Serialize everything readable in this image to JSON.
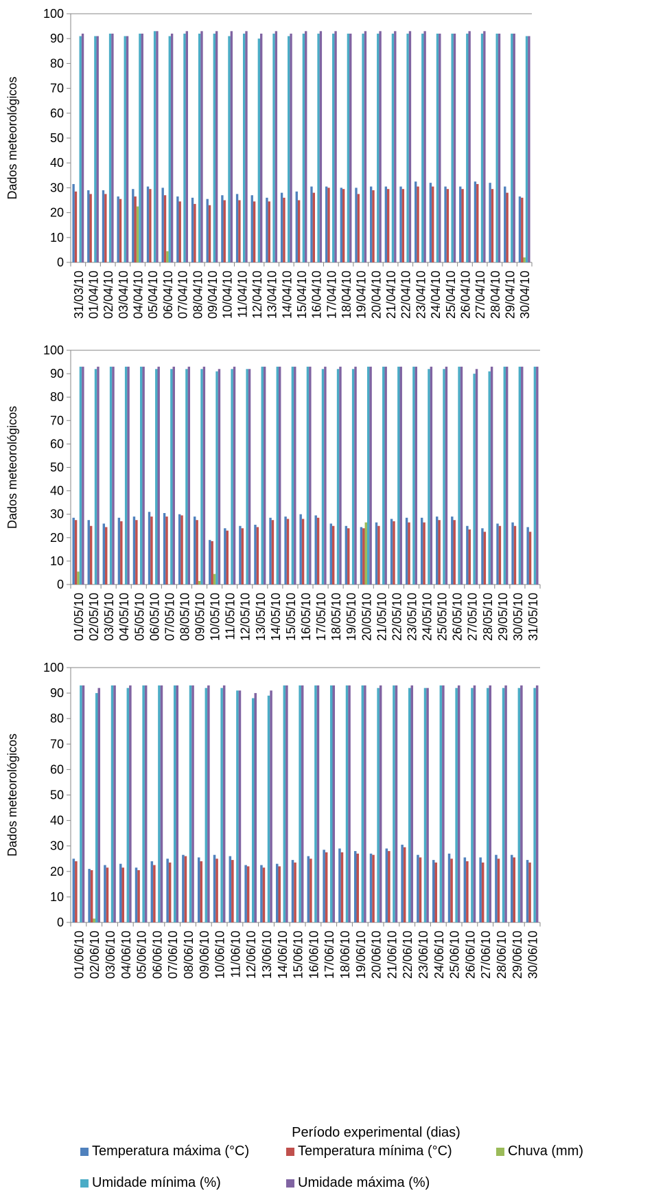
{
  "figure": {
    "xlabel": "Período experimental (dias)",
    "legend": [
      {
        "name": "Temperatura máxima (°C)",
        "color": "#4f81bd"
      },
      {
        "name": "Temperatura mínima (°C)",
        "color": "#c0504d"
      },
      {
        "name": "Chuva (mm)",
        "color": "#9bbb59"
      },
      {
        "name": "Umidade mínima (%)",
        "color": "#4bacc6"
      },
      {
        "name": "Umidade máxima (%)",
        "color": "#8064a2"
      }
    ]
  },
  "chart_data": [
    {
      "type": "bar",
      "title": "",
      "xlabel": "",
      "ylabel": "Dados meteorológicos",
      "ylim": [
        0,
        100
      ],
      "yticks": [
        0,
        10,
        20,
        30,
        40,
        50,
        60,
        70,
        80,
        90,
        100
      ],
      "grid": false,
      "legend_position": "bottom",
      "categories": [
        "31/03/10",
        "01/04/10",
        "02/04/10",
        "03/04/10",
        "04/04/10",
        "05/04/10",
        "06/04/10",
        "07/04/10",
        "08/04/10",
        "09/04/10",
        "10/04/10",
        "11/04/10",
        "12/04/10",
        "13/04/10",
        "14/04/10",
        "15/04/10",
        "16/04/10",
        "17/04/10",
        "18/04/10",
        "19/04/10",
        "20/04/10",
        "21/04/10",
        "22/04/10",
        "23/04/10",
        "24/04/10",
        "25/04/10",
        "26/04/10",
        "27/04/10",
        "28/04/10",
        "29/04/10",
        "30/04/10"
      ],
      "series": [
        {
          "name": "Temperatura máxima (°C)",
          "color": "#4f81bd",
          "values": [
            31.5,
            29,
            29,
            26.5,
            29.5,
            30.5,
            30,
            26.5,
            26,
            25.5,
            27,
            27.5,
            27,
            26,
            28,
            28.5,
            30.5,
            30.5,
            30,
            30,
            30.5,
            30.5,
            30.5,
            32.5,
            32,
            30.5,
            30.5,
            32.5,
            32,
            30.5,
            26.5
          ]
        },
        {
          "name": "Temperatura mínima (°C)",
          "color": "#c0504d",
          "values": [
            28.5,
            27.5,
            27.5,
            25.5,
            26.5,
            29.5,
            27,
            24.5,
            23.5,
            23,
            25,
            25,
            24.5,
            24.5,
            26,
            25,
            28,
            30,
            29.5,
            27.5,
            29,
            29.5,
            29.5,
            30.5,
            30.5,
            29.5,
            29.5,
            31.5,
            29.5,
            28,
            26
          ]
        },
        {
          "name": "Chuva (mm)",
          "color": "#9bbb59",
          "values": [
            0,
            0,
            0,
            0,
            22.5,
            0,
            4.5,
            0,
            0,
            0,
            0,
            0,
            0,
            0,
            0,
            0,
            0,
            0,
            0,
            0,
            0,
            0,
            0,
            0,
            0,
            0,
            0,
            0,
            0,
            0,
            2
          ]
        },
        {
          "name": "Umidade mínima (%)",
          "color": "#4bacc6",
          "values": [
            91,
            91,
            92,
            91,
            92,
            93,
            91,
            92,
            92,
            92,
            91,
            92,
            90,
            92,
            91,
            92,
            92,
            92,
            92,
            92,
            92,
            92,
            92,
            92,
            92,
            92,
            92,
            92,
            92,
            92,
            91
          ]
        },
        {
          "name": "Umidade máxima (%)",
          "color": "#8064a2",
          "values": [
            92,
            91,
            92,
            91,
            92,
            93,
            92,
            93,
            93,
            93,
            93,
            93,
            92,
            93,
            92,
            93,
            93,
            93,
            92,
            93,
            93,
            93,
            93,
            93,
            92,
            92,
            93,
            93,
            92,
            92,
            91
          ]
        }
      ]
    },
    {
      "type": "bar",
      "title": "",
      "xlabel": "",
      "ylabel": "Dados meteorológicos",
      "ylim": [
        0,
        100
      ],
      "yticks": [
        0,
        10,
        20,
        30,
        40,
        50,
        60,
        70,
        80,
        90,
        100
      ],
      "grid": false,
      "legend_position": "bottom",
      "categories": [
        "01/05/10",
        "02/05/10",
        "03/05/10",
        "04/05/10",
        "05/05/10",
        "06/05/10",
        "07/05/10",
        "08/05/10",
        "09/05/10",
        "10/05/10",
        "11/05/10",
        "12/05/10",
        "13/05/10",
        "14/05/10",
        "15/05/10",
        "16/05/10",
        "17/05/10",
        "18/05/10",
        "19/05/10",
        "20/05/10",
        "21/05/10",
        "22/05/10",
        "23/05/10",
        "24/05/10",
        "25/05/10",
        "26/05/10",
        "27/05/10",
        "28/05/10",
        "29/05/10",
        "30/05/10",
        "31/05/10"
      ],
      "series": [
        {
          "name": "Temperatura máxima (°C)",
          "color": "#4f81bd",
          "values": [
            28.5,
            27.5,
            26,
            28.5,
            29,
            31,
            30.5,
            30,
            29,
            19,
            24,
            25,
            25.5,
            28.5,
            29,
            30,
            29.5,
            26,
            25,
            24.5,
            26.5,
            28,
            28.5,
            28.5,
            29,
            29,
            25,
            24,
            26,
            26.5,
            24.5
          ]
        },
        {
          "name": "Temperatura mínima (°C)",
          "color": "#c0504d",
          "values": [
            27.5,
            25,
            24.5,
            27,
            27.5,
            29,
            29,
            29.5,
            27.5,
            18.5,
            23,
            24,
            24.5,
            27.5,
            28,
            28,
            28.5,
            25,
            24,
            24,
            25,
            27,
            26.5,
            26.5,
            27.5,
            27.5,
            23.5,
            22.5,
            25,
            25,
            22.5
          ]
        },
        {
          "name": "Chuva (mm)",
          "color": "#9bbb59",
          "values": [
            5.5,
            0,
            0,
            0,
            0,
            0,
            0,
            0,
            1.5,
            4.5,
            0,
            0,
            0,
            0,
            0,
            0,
            0,
            0,
            0,
            26.5,
            0,
            0,
            0,
            0,
            0,
            0,
            0,
            0,
            0,
            0,
            0
          ]
        },
        {
          "name": "Umidade mínima (%)",
          "color": "#4bacc6",
          "values": [
            93,
            92,
            93,
            93,
            93,
            92,
            92,
            92,
            92,
            91,
            92,
            92,
            93,
            93,
            93,
            93,
            92,
            92,
            92,
            93,
            93,
            93,
            93,
            92,
            92,
            93,
            90,
            91,
            93,
            93,
            93
          ]
        },
        {
          "name": "Umidade máxima (%)",
          "color": "#8064a2",
          "values": [
            93,
            93,
            93,
            93,
            93,
            93,
            93,
            93,
            93,
            92,
            93,
            92,
            93,
            93,
            93,
            93,
            93,
            93,
            93,
            93,
            93,
            93,
            93,
            93,
            93,
            93,
            92,
            93,
            93,
            93,
            93
          ]
        }
      ]
    },
    {
      "type": "bar",
      "title": "",
      "xlabel": "Período experimental (dias)",
      "ylabel": "Dados meteorológicos",
      "ylim": [
        0,
        100
      ],
      "yticks": [
        0,
        10,
        20,
        30,
        40,
        50,
        60,
        70,
        80,
        90,
        100
      ],
      "grid": false,
      "legend_position": "bottom",
      "categories": [
        "01/06/10",
        "02/06/10",
        "03/06/10",
        "04/06/10",
        "05/06/10",
        "06/06/10",
        "07/06/10",
        "08/06/10",
        "09/06/10",
        "10/06/10",
        "11/06/10",
        "12/06/10",
        "13/06/10",
        "14/06/10",
        "15/06/10",
        "16/06/10",
        "17/06/10",
        "18/06/10",
        "19/06/10",
        "20/06/10",
        "21/06/10",
        "22/06/10",
        "23/06/10",
        "24/06/10",
        "25/06/10",
        "26/06/10",
        "27/06/10",
        "28/06/10",
        "29/06/10",
        "30/06/10"
      ],
      "series": [
        {
          "name": "Temperatura máxima (°C)",
          "color": "#4f81bd",
          "values": [
            25,
            21,
            22.5,
            23,
            21.5,
            24,
            25,
            26.5,
            25.5,
            26.5,
            26,
            22.5,
            22.5,
            23,
            24.5,
            26,
            28.5,
            29,
            28,
            27,
            29,
            30.5,
            26.5,
            24.5,
            27,
            25.5,
            25.5,
            26.5,
            26.5,
            24.5
          ]
        },
        {
          "name": "Temperatura mínima (°C)",
          "color": "#c0504d",
          "values": [
            24,
            20.5,
            21.5,
            21.5,
            20.5,
            22.5,
            23.5,
            26,
            24,
            25,
            24.5,
            22,
            21.5,
            22,
            23.5,
            25,
            27.5,
            27.5,
            27,
            26.5,
            28,
            29.5,
            25.5,
            23.5,
            25,
            24,
            23.5,
            25,
            25.5,
            23.5
          ]
        },
        {
          "name": "Chuva (mm)",
          "color": "#9bbb59",
          "values": [
            0,
            1.5,
            0,
            0,
            0,
            0,
            0,
            0,
            0,
            0,
            0,
            0,
            0,
            0,
            0,
            0,
            0,
            0,
            0,
            0,
            0,
            0,
            0,
            0,
            0,
            0,
            0,
            0,
            0,
            0
          ]
        },
        {
          "name": "Umidade mínima (%)",
          "color": "#4bacc6",
          "values": [
            93,
            90,
            93,
            92,
            93,
            93,
            93,
            93,
            92,
            92,
            91,
            88,
            89,
            93,
            93,
            93,
            93,
            93,
            93,
            92,
            93,
            92,
            92,
            93,
            92,
            92,
            92,
            92,
            92,
            92
          ]
        },
        {
          "name": "Umidade máxima (%)",
          "color": "#8064a2",
          "values": [
            93,
            92,
            93,
            93,
            93,
            93,
            93,
            93,
            93,
            93,
            91,
            90,
            91,
            93,
            93,
            93,
            93,
            93,
            93,
            93,
            93,
            93,
            92,
            93,
            93,
            93,
            93,
            93,
            93,
            93
          ]
        }
      ]
    }
  ]
}
